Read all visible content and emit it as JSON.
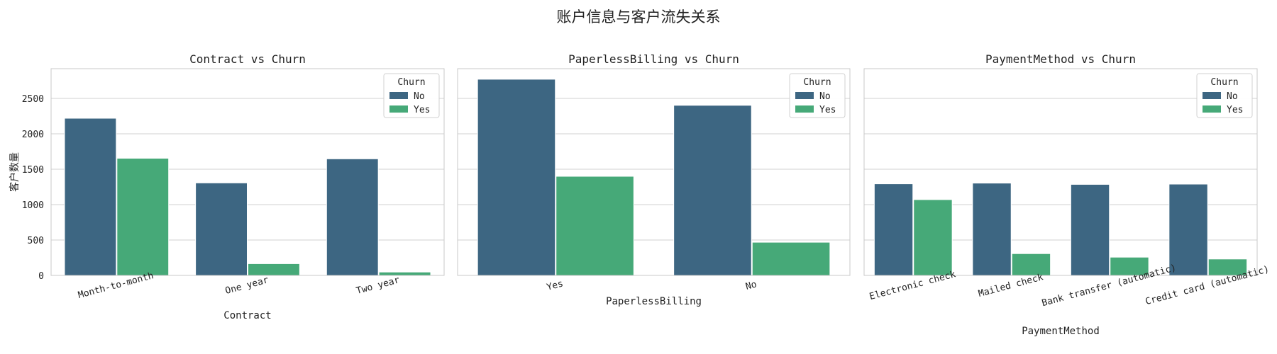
{
  "suptitle": "账户信息与客户流失关系",
  "colors": {
    "No": "#3d6682",
    "Yes": "#46a978",
    "grid": "#d0d0d0",
    "frame": "#c8c8c8"
  },
  "chart_data": [
    {
      "type": "bar",
      "title": "Contract vs Churn",
      "xlabel": "Contract",
      "ylabel": "客户数量",
      "categories": [
        "Month-to-month",
        "One year",
        "Two year"
      ],
      "series": [
        {
          "name": "No",
          "values": [
            2220,
            1307,
            1647
          ]
        },
        {
          "name": "Yes",
          "values": [
            1655,
            166,
            48
          ]
        }
      ],
      "legend_title": "Churn",
      "legend_position": "upper right",
      "ylim": [
        0,
        2920
      ],
      "yticks": [
        0,
        500,
        1000,
        1500,
        2000,
        2500
      ],
      "xtick_rotation": 15,
      "grid": true
    },
    {
      "type": "bar",
      "title": "PaperlessBilling vs Churn",
      "xlabel": "PaperlessBilling",
      "categories": [
        "Yes",
        "No"
      ],
      "series": [
        {
          "name": "No",
          "values": [
            2771,
            2403
          ]
        },
        {
          "name": "Yes",
          "values": [
            1400,
            469
          ]
        }
      ],
      "legend_title": "Churn",
      "legend_position": "upper right",
      "ylim": [
        0,
        2920
      ],
      "xtick_rotation": 15,
      "grid": true
    },
    {
      "type": "bar",
      "title": "PaymentMethod vs Churn",
      "xlabel": "PaymentMethod",
      "categories": [
        "Electronic check",
        "Mailed check",
        "Bank transfer (automatic)",
        "Credit card (automatic)"
      ],
      "series": [
        {
          "name": "No",
          "values": [
            1294,
            1304,
            1286,
            1290
          ]
        },
        {
          "name": "Yes",
          "values": [
            1071,
            308,
            258,
            232
          ]
        }
      ],
      "legend_title": "Churn",
      "legend_position": "upper right",
      "ylim": [
        0,
        2920
      ],
      "xtick_rotation": 15,
      "grid": true
    }
  ]
}
